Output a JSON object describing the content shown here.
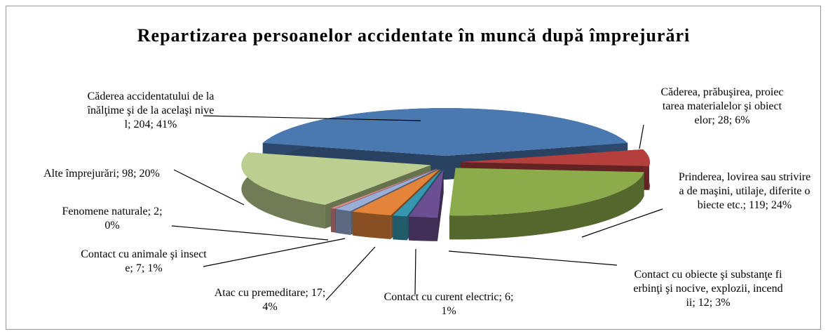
{
  "chart_data": {
    "type": "pie3d",
    "title": "Repartizarea persoanelor accidentate în muncă după împrejurări",
    "labels": [
      "Căderea accidentatului de la înălţime şi de la acelaşi nivel; 204; 41%",
      "Căderea, prăbuşirea, proiectarea materialelor şi obiectelor; 28; 6%",
      "Prinderea, lovirea sau strivirea de maşini, utilaje, diferite obiecte etc.; 119; 24%",
      "Contact cu obiecte şi substanţe fierbinţi şi nocive, explozii, incendii; 12; 3%",
      "Contact cu curent electric; 6; 1%",
      "Atac cu premeditare; 17; 4%",
      "Contact cu animale şi insecte; 7; 1%",
      "Fenomene naturale; 2; 0%",
      "Alte împrejurări; 98; 20%"
    ],
    "values": [
      204,
      28,
      119,
      12,
      6,
      17,
      7,
      2,
      98
    ],
    "colors": [
      "#4a78b0",
      "#b4403d",
      "#8cab4a",
      "#6c4e92",
      "#3797b0",
      "#e3843a",
      "#9aafd8",
      "#d88c8a",
      "#bccf90"
    ]
  }
}
